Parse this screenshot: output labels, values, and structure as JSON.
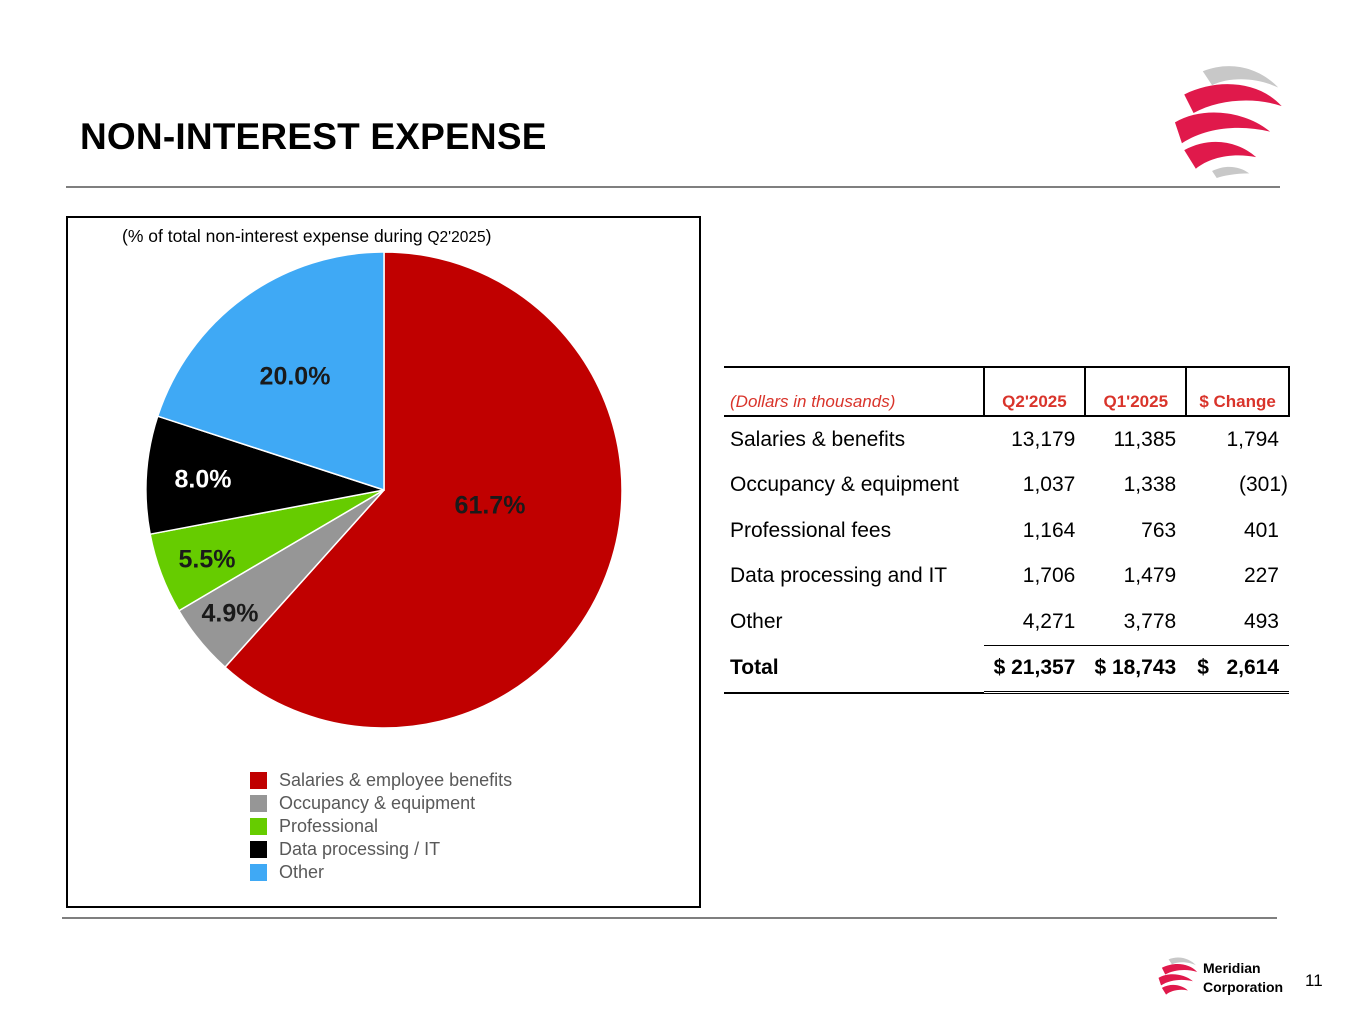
{
  "title": "NON-INTEREST EXPENSE",
  "chart_data": {
    "type": "pie",
    "subtitle_main": "(% of total non-interest expense during ",
    "subtitle_period": "Q2'2025",
    "subtitle_end": ")",
    "slices": [
      {
        "name": "Salaries & employee benefits",
        "value": 61.7,
        "label": "61.7%",
        "color": "#c00000"
      },
      {
        "name": "Occupancy & equipment",
        "value": 4.9,
        "label": "4.9%",
        "color": "#969696"
      },
      {
        "name": "Professional",
        "value": 5.5,
        "label": "5.5%",
        "color": "#66cc00"
      },
      {
        "name": "Data processing / IT",
        "value": 8.0,
        "label": "8.0%",
        "color": "#000000"
      },
      {
        "name": "Other",
        "value": 20.0,
        "label": "20.0%",
        "color": "#3fa9f5"
      }
    ],
    "start_angle": "12 o'clock",
    "direction": "clockwise",
    "legend_position": "bottom"
  },
  "table": {
    "header": {
      "label": "(Dollars in thousands)",
      "q2": "Q2'2025",
      "q1": "Q1'2025",
      "change": "$ Change"
    },
    "rows": [
      {
        "label": "Salaries & benefits",
        "q2": "13,179",
        "q1": "11,385",
        "change": "1,794"
      },
      {
        "label": "Occupancy & equipment",
        "q2": "1,037",
        "q1": "1,338",
        "change": "(301)"
      },
      {
        "label": "Professional fees",
        "q2": "1,164",
        "q1": "763",
        "change": "401"
      },
      {
        "label": "Data processing and IT",
        "q2": "1,706",
        "q1": "1,479",
        "change": "227"
      },
      {
        "label": "Other",
        "q2": "4,271",
        "q1": "3,778",
        "change": "493"
      }
    ],
    "total": {
      "label": "Total",
      "q2": "$ 21,357",
      "q1": "$ 18,743",
      "change": "$   2,614"
    }
  },
  "footer": {
    "company_line1": "Meridian",
    "company_line2": "Corporation",
    "page_number": "11"
  },
  "colors": {
    "brand_red": "#e0194b",
    "brand_grey": "#c8c8c8",
    "header_red": "#d9342b"
  },
  "icons": {
    "logo": "meridian-swirl-logo"
  }
}
